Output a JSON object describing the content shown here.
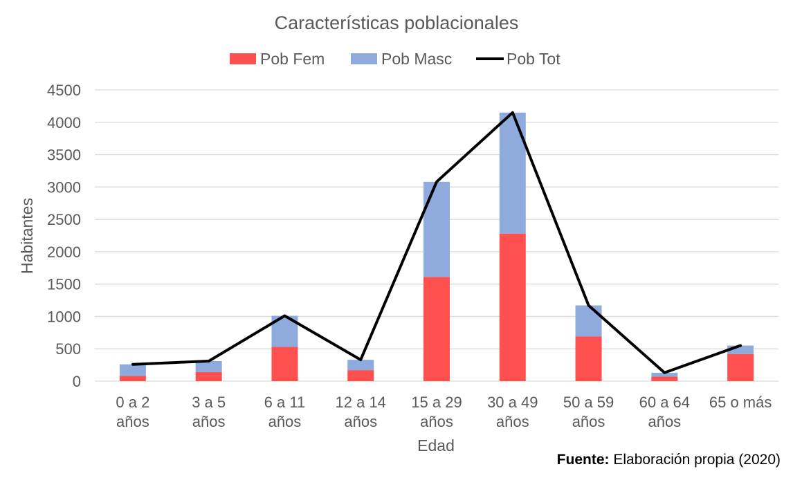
{
  "chart_data": {
    "type": "bar",
    "title": "Características poblacionales",
    "xlabel": "Edad",
    "ylabel": "Habitantes",
    "ylim": [
      0,
      4500
    ],
    "yticks": [
      0,
      500,
      1000,
      1500,
      2000,
      2500,
      3000,
      3500,
      4000,
      4500
    ],
    "grid": true,
    "legend_position": "top",
    "categories": [
      [
        "0 a 2",
        "años"
      ],
      [
        "3 a 5",
        "años"
      ],
      [
        "6 a 11",
        "años"
      ],
      [
        "12 a 14",
        "años"
      ],
      [
        "15 a 29",
        "años"
      ],
      [
        "30 a 49",
        "años"
      ],
      [
        "50 a 59",
        "años"
      ],
      [
        "60 a 64",
        "años"
      ],
      [
        "65 o más"
      ]
    ],
    "series": [
      {
        "name": "Pob Fem",
        "kind": "stacked-bar",
        "color": "#ff5050",
        "values": [
          80,
          140,
          530,
          170,
          1610,
          2280,
          690,
          70,
          420
        ]
      },
      {
        "name": "Pob Masc",
        "kind": "stacked-bar",
        "color": "#8faadc",
        "values": [
          180,
          170,
          480,
          160,
          1470,
          1870,
          480,
          60,
          130
        ]
      },
      {
        "name": "Pob Tot",
        "kind": "line",
        "color": "#000000",
        "values": [
          260,
          310,
          1010,
          330,
          3080,
          4150,
          1170,
          130,
          550
        ]
      }
    ]
  },
  "source": {
    "label": "Fuente:",
    "text": "Elaboración propia (2020)"
  }
}
